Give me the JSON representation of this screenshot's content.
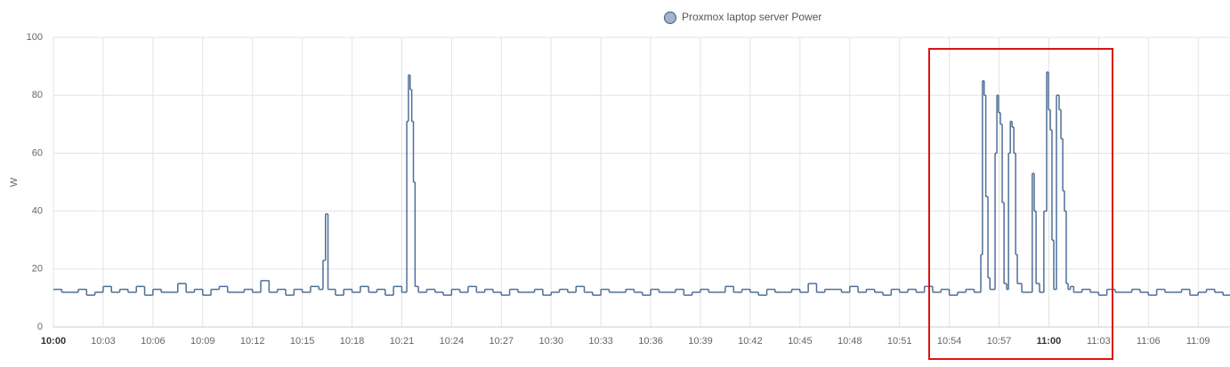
{
  "chart_data": {
    "type": "step-line",
    "y_label": "W",
    "grid": true,
    "xlim": [
      0,
      70.92
    ],
    "ylim": [
      0,
      100
    ],
    "yticks": [
      0,
      20,
      40,
      60,
      80,
      100
    ],
    "xticks": [
      {
        "value": 0,
        "label": "10:00"
      },
      {
        "value": 3,
        "label": "10:03"
      },
      {
        "value": 6,
        "label": "10:06"
      },
      {
        "value": 9,
        "label": "10:09"
      },
      {
        "value": 12,
        "label": "10:12"
      },
      {
        "value": 15,
        "label": "10:15"
      },
      {
        "value": 18,
        "label": "10:18"
      },
      {
        "value": 21,
        "label": "10:21"
      },
      {
        "value": 24,
        "label": "10:24"
      },
      {
        "value": 27,
        "label": "10:27"
      },
      {
        "value": 30,
        "label": "10:30"
      },
      {
        "value": 33,
        "label": "10:33"
      },
      {
        "value": 36,
        "label": "10:36"
      },
      {
        "value": 39,
        "label": "10:39"
      },
      {
        "value": 42,
        "label": "10:42"
      },
      {
        "value": 45,
        "label": "10:45"
      },
      {
        "value": 48,
        "label": "10:48"
      },
      {
        "value": 51,
        "label": "10:51"
      },
      {
        "value": 54,
        "label": "10:54"
      },
      {
        "value": 57,
        "label": "10:57"
      },
      {
        "value": 60,
        "label": "11:00"
      },
      {
        "value": 63,
        "label": "11:03"
      },
      {
        "value": 66,
        "label": "11:06"
      },
      {
        "value": 69,
        "label": "11:09"
      }
    ],
    "x": [
      0,
      0.5,
      1,
      1.5,
      2,
      2.5,
      3,
      3.5,
      4,
      4.5,
      5,
      5.5,
      6,
      6.5,
      7,
      7.5,
      8,
      8.5,
      9,
      9.5,
      10,
      10.5,
      11,
      11.5,
      12,
      12.5,
      13,
      13.5,
      14,
      14.5,
      15,
      15.5,
      16,
      16.25,
      16.4,
      16.55,
      17,
      17.5,
      18,
      18.5,
      19,
      19.5,
      20,
      20.5,
      21,
      21.3,
      21.4,
      21.5,
      21.6,
      21.7,
      21.8,
      22,
      22.5,
      23,
      23.5,
      24,
      24.5,
      25,
      25.5,
      26,
      26.5,
      27,
      27.5,
      28,
      28.5,
      29,
      29.5,
      30,
      30.5,
      31,
      31.5,
      32,
      32.5,
      33,
      33.5,
      34,
      34.5,
      35,
      35.5,
      36,
      36.5,
      37,
      37.5,
      38,
      38.5,
      39,
      39.5,
      40,
      40.5,
      41,
      41.5,
      42,
      42.5,
      43,
      43.5,
      44,
      44.5,
      45,
      45.5,
      46,
      46.5,
      47,
      47.5,
      48,
      48.5,
      49,
      49.5,
      50,
      50.5,
      51,
      51.5,
      52,
      52.5,
      53,
      53.5,
      54,
      54.5,
      55,
      55.5,
      55.9,
      56,
      56.1,
      56.2,
      56.33,
      56.45,
      56.76,
      56.87,
      56.97,
      57.08,
      57.19,
      57.3,
      57.46,
      57.57,
      57.68,
      57.78,
      57.89,
      58,
      58.1,
      58.37,
      59,
      59.12,
      59.23,
      59.44,
      59.7,
      59.87,
      59.98,
      60.09,
      60.19,
      60.3,
      60.46,
      60.62,
      60.73,
      60.84,
      60.94,
      61.05,
      61.16,
      61.3,
      61.5,
      62,
      62.5,
      63,
      63.5,
      64,
      64.5,
      65,
      65.5,
      66,
      66.5,
      67,
      67.5,
      68,
      68.5,
      69,
      69.5,
      70,
      70.5
    ],
    "series": [
      {
        "name": "Proxmox laptop server Power",
        "color": "#4e6f99",
        "values": [
          13,
          12,
          12,
          13,
          11,
          12,
          14,
          12,
          13,
          12,
          14,
          11,
          13,
          12,
          12,
          15,
          12,
          13,
          11,
          13,
          14,
          12,
          12,
          13,
          12,
          16,
          12,
          13,
          11,
          13,
          12,
          14,
          13,
          23,
          39,
          13,
          11,
          13,
          12,
          14,
          12,
          13,
          11,
          14,
          12,
          71,
          87,
          82,
          71,
          50,
          14,
          12,
          13,
          12,
          11,
          13,
          12,
          14,
          12,
          13,
          12,
          11,
          13,
          12,
          12,
          13,
          11,
          12,
          13,
          12,
          14,
          12,
          11,
          13,
          12,
          12,
          13,
          12,
          11,
          13,
          12,
          12,
          13,
          11,
          12,
          13,
          12,
          12,
          14,
          12,
          13,
          12,
          11,
          13,
          12,
          12,
          13,
          12,
          15,
          12,
          13,
          13,
          12,
          14,
          12,
          13,
          12,
          11,
          13,
          12,
          13,
          12,
          14,
          12,
          13,
          11,
          12,
          13,
          12,
          25,
          85,
          80,
          45,
          17,
          13,
          60,
          80,
          74,
          70,
          43,
          15,
          13,
          60,
          71,
          69,
          60,
          25,
          15,
          12,
          53,
          40,
          15,
          12,
          40,
          88,
          75,
          68,
          30,
          13,
          80,
          75,
          65,
          47,
          40,
          15,
          13,
          14,
          12,
          13,
          12,
          11,
          13,
          12,
          12,
          13,
          12,
          11,
          13,
          12,
          12,
          13,
          11,
          12,
          13,
          12,
          11
        ]
      }
    ]
  }
}
